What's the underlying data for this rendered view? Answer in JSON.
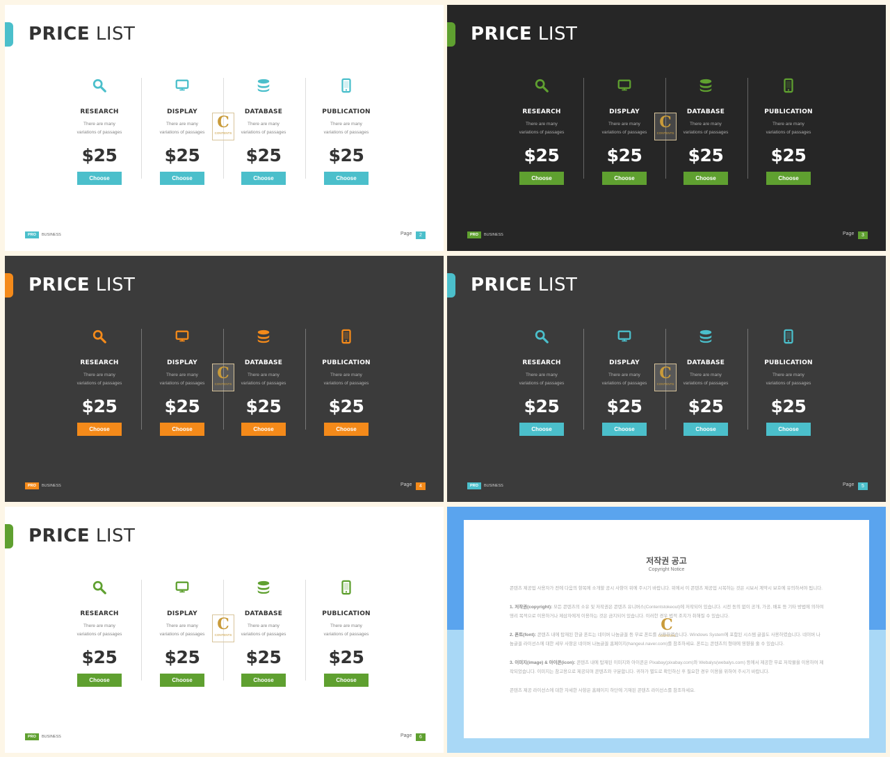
{
  "slides": [
    {
      "id": "slide-2",
      "theme": {
        "bg": "#ffffff",
        "accent": "#4bbfcb",
        "text": "#333333",
        "muted": "#666666",
        "divider": "#dddddd"
      },
      "title_bold": "PRICE",
      "title_light": "LIST",
      "page": "2"
    },
    {
      "id": "slide-3",
      "theme": {
        "bg": "#262626",
        "accent": "#5fa030",
        "text": "#ffffff",
        "muted": "#cccccc",
        "divider": "#666666"
      },
      "title_bold": "PRICE",
      "title_light": "LIST",
      "page": "3"
    },
    {
      "id": "slide-4",
      "theme": {
        "bg": "#3b3b3b",
        "accent": "#f48a1a",
        "text": "#ffffff",
        "muted": "#cccccc",
        "divider": "#777777"
      },
      "title_bold": "PRICE",
      "title_light": "LIST",
      "page": "4"
    },
    {
      "id": "slide-5",
      "theme": {
        "bg": "#3b3b3b",
        "accent": "#4bbfcb",
        "text": "#ffffff",
        "muted": "#cccccc",
        "divider": "#777777"
      },
      "title_bold": "PRICE",
      "title_light": "LIST",
      "page": "5"
    },
    {
      "id": "slide-6",
      "theme": {
        "bg": "#ffffff",
        "accent": "#5fa030",
        "text": "#333333",
        "muted": "#666666",
        "divider": "#dddddd"
      },
      "title_bold": "PRICE",
      "title_light": "LIST",
      "page": "6"
    }
  ],
  "columns": [
    {
      "title": "RESEARCH",
      "icon": "search-icon",
      "desc_1": "There are many",
      "desc_2": "variations of passages",
      "price": "$25",
      "button": "Choose"
    },
    {
      "title": "DISPLAY",
      "icon": "monitor-icon",
      "desc_1": "There are many",
      "desc_2": "variations of passages",
      "price": "$25",
      "button": "Choose"
    },
    {
      "title": "DATABASE",
      "icon": "database-icon",
      "desc_1": "There are many",
      "desc_2": "variations of passages",
      "price": "$25",
      "button": "Choose"
    },
    {
      "title": "PUBLICATION",
      "icon": "phone-icon",
      "desc_1": "There are many",
      "desc_2": "variations of passages",
      "price": "$25",
      "button": "Choose"
    }
  ],
  "footer": {
    "pro": "PRO",
    "business": "BUSINESS",
    "page_label": "Page"
  },
  "logo": {
    "letter": "C",
    "text": "CONTENTS"
  },
  "notice": {
    "title": "저작권 공고",
    "subtitle": "Copyright Notice",
    "p1": "콘텐츠 제공업 사용자가 전에 다음의 항목에 소개할 공시 사항이 위에 주시기 바랍니다. 위에서 이 콘텐츠 제공업 시복하는 것은 시보서 계약시 보호에 유의하셔야 됩니다.",
    "p2_head": "1. 저작권(copyright):",
    "p2": "모든 콘텐츠의 소유 및 저작권은 콘텐츠 유니버스(Contentstokeout)에 저작되어 있습니다. 시전 동의 없이 공개, 가공, 배포 등 기타 방법에 의하여 영리 목적으로 이용하거나 제삼자에게 이용하는 것은 금지되어 있습니다. 이러한 경우 법적 조치가 취해질 수 있습니다.",
    "p3_head": "2. 폰트(font):",
    "p3": "콘텐츠 내에 탑재된 한글 폰트는 네이버 나눔글꼴 등 무료 폰트를 사용하였습니다. Windows System에 포함된 시스템 글꼴도 사용하였습니다. 네이버 나눔글꼴 라이선스에 대한 세부 사항은 네이버 나눔글꼴 홈페이지(hangeul.naver.com)를 참조하세요. 폰트는 콘텐츠의 형태에 영향을 줄 수 있습니다.",
    "p4_head": "3. 이미지(image) & 아이콘(icon):",
    "p4": "콘텐츠 내에 탑재된 이미지와 아이콘은 Pixabay(pixabay.com)와 Webalys(webalys.com) 등에서 제공한 무료 저작물을 이용하여 제작되었습니다. 이미지는 참고용으로 제공되며 콘텐츠와 구분합니다. 귀하가 별도로 확인하신 후 필요한 경우 이용을 위하여 주시기 바랍니다.",
    "p5": "콘텐츠 제공 라이선스에 대한 자세한 사항은 홈페이지 하단에 기재된 콘텐츠 라이선스를 참조하세요."
  }
}
